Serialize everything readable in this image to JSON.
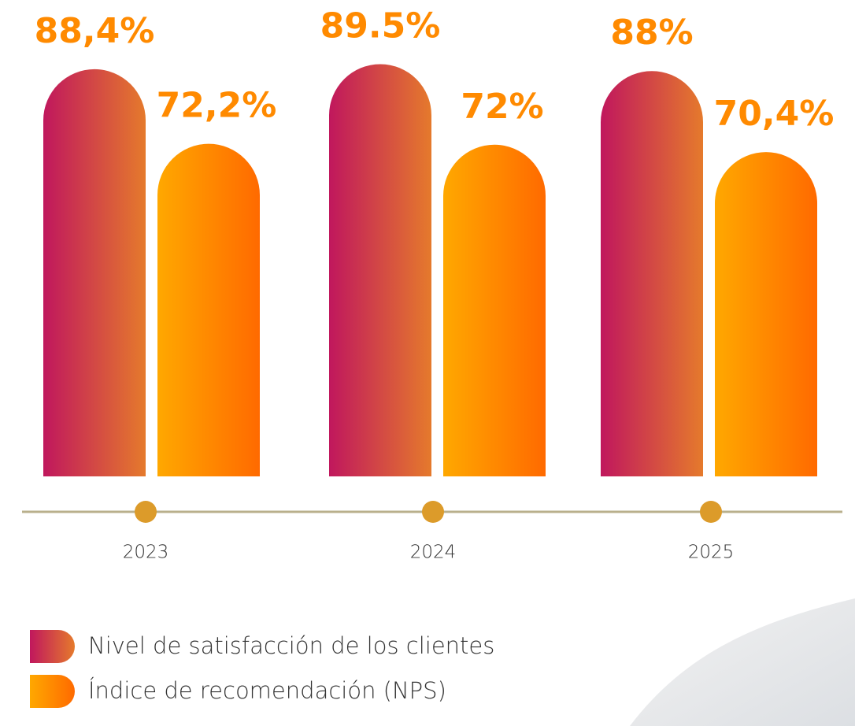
{
  "chart_data": {
    "type": "bar",
    "categories": [
      "2023",
      "2024",
      "2025"
    ],
    "series": [
      {
        "name": "Nivel de satisfacción de los clientes",
        "color": [
          "#c0175d",
          "#e57a2c"
        ],
        "values": [
          88.4,
          89.5,
          88
        ],
        "value_labels": [
          "88,4%",
          "89.5%",
          "88%"
        ]
      },
      {
        "name": "Índice de recomendación (NPS)",
        "color": [
          "#ffa800",
          "#ff6a00"
        ],
        "values": [
          72.2,
          72,
          70.4
        ],
        "value_labels": [
          "72,2%",
          "72%",
          "70,4%"
        ]
      }
    ]
  }
}
